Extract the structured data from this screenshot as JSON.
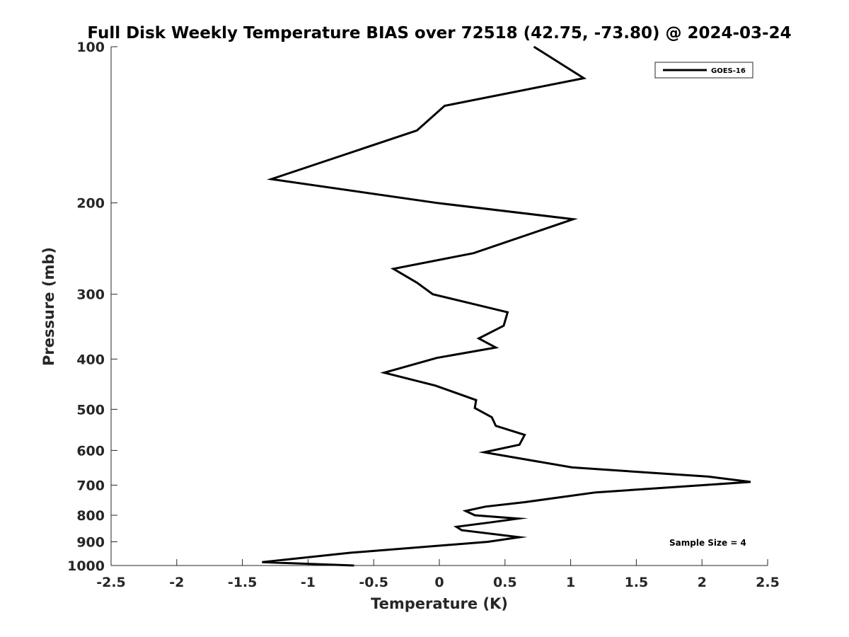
{
  "chart_data": {
    "type": "line",
    "title": "Full Disk Weekly Temperature BIAS over 72518 (42.75, -73.80) @ 2024-03-24",
    "xlabel": "Temperature (K)",
    "ylabel": "Pressure (mb)",
    "xlim": [
      -2.5,
      2.5
    ],
    "ylim": [
      100,
      1000
    ],
    "y_scale": "log",
    "x_ticks": [
      -2.5,
      -2,
      -1.5,
      -1,
      -0.5,
      0,
      0.5,
      1,
      1.5,
      2,
      2.5
    ],
    "x_tick_labels": [
      "-2.5",
      "-2",
      "-1.5",
      "-1",
      "-0.5",
      "0",
      "0.5",
      "1",
      "1.5",
      "2",
      "2.5"
    ],
    "y_ticks": [
      100,
      200,
      300,
      400,
      500,
      600,
      700,
      800,
      900,
      1000
    ],
    "y_tick_labels": [
      "100",
      "200",
      "300",
      "400",
      "500",
      "600",
      "700",
      "800",
      "900",
      "1000"
    ],
    "grid": false,
    "legend_position": "top-right",
    "series": [
      {
        "name": "GOES-16",
        "color": "#000000",
        "x": [
          0.72,
          1.1,
          0.04,
          -0.17,
          -1.28,
          -0.02,
          1.02,
          0.26,
          -0.35,
          -0.17,
          -0.05,
          0.52,
          0.49,
          0.3,
          0.43,
          -0.02,
          -0.42,
          -0.03,
          0.28,
          0.27,
          0.4,
          0.43,
          0.65,
          0.61,
          0.34,
          1.01,
          2.05,
          2.37,
          1.19,
          0.65,
          0.35,
          0.2,
          0.27,
          0.6,
          0.4,
          0.13,
          0.17,
          0.61,
          0.37,
          -0.68,
          -1.35,
          -0.65
        ],
        "y": [
          100,
          115,
          130,
          145,
          180,
          200,
          215,
          250,
          268,
          285,
          300,
          325,
          345,
          365,
          380,
          398,
          425,
          450,
          480,
          497,
          518,
          538,
          560,
          585,
          605,
          647,
          674,
          690,
          723,
          755,
          770,
          785,
          800,
          812,
          825,
          842,
          855,
          882,
          900,
          945,
          985,
          1000
        ]
      }
    ],
    "annotations": [
      "Sample Size = 4"
    ]
  }
}
